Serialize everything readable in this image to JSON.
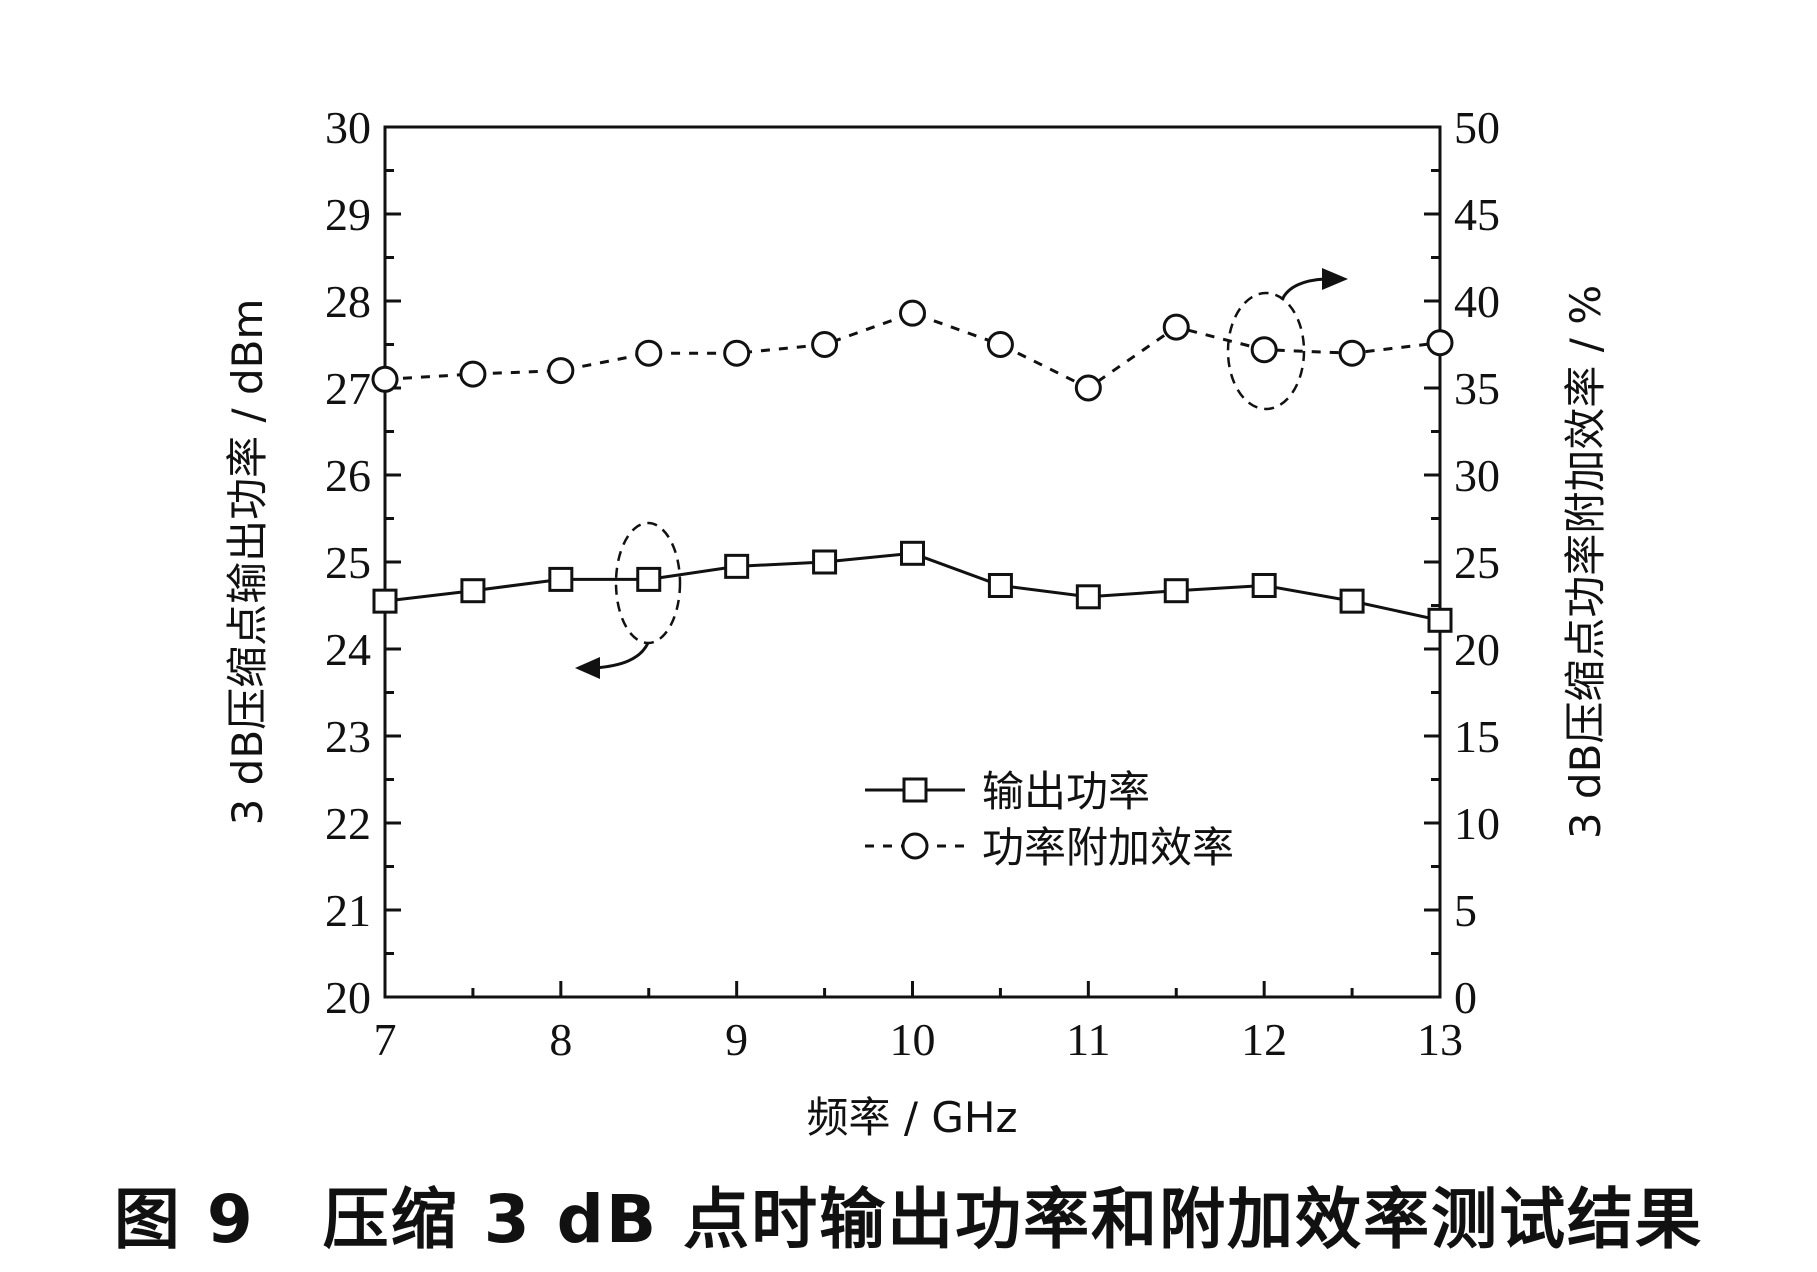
{
  "chart_data": {
    "type": "line",
    "x": [
      7,
      7.5,
      8,
      8.5,
      9,
      9.5,
      10,
      10.5,
      11,
      11.5,
      12,
      12.5,
      13
    ],
    "xlabel": "频率 / GHz",
    "xlim": [
      7,
      13
    ],
    "xticks": [
      "7",
      "8",
      "9",
      "10",
      "11",
      "12",
      "13"
    ],
    "ylabel": "3 dB压缩点输出功率 / dBm",
    "ylim": [
      20,
      30
    ],
    "yticks": [
      "20",
      "21",
      "22",
      "23",
      "24",
      "25",
      "26",
      "27",
      "28",
      "29",
      "30"
    ],
    "y2label": "3 dB压缩点功率附加效率 / %",
    "y2lim": [
      0,
      50
    ],
    "y2ticks": [
      "0",
      "5",
      "10",
      "15",
      "20",
      "25",
      "30",
      "35",
      "40",
      "45",
      "50"
    ],
    "series": [
      {
        "name": "输出功率",
        "axis": "left",
        "marker": "square",
        "line": "solid",
        "values": [
          24.55,
          24.67,
          24.8,
          24.8,
          24.95,
          25.0,
          25.1,
          24.73,
          24.6,
          24.67,
          24.73,
          24.55,
          24.33
        ]
      },
      {
        "name": "功率附加效率",
        "axis": "right",
        "marker": "circle",
        "line": "dashed",
        "values": [
          35.5,
          35.8,
          36.0,
          37.0,
          37.0,
          37.5,
          39.3,
          37.5,
          35.0,
          38.5,
          37.2,
          37.0,
          37.6
        ]
      }
    ],
    "legend": "bottom-right",
    "grid": false,
    "caption": "图 9　压缩 3 dB 点时输出功率和附加效率测试结果"
  }
}
